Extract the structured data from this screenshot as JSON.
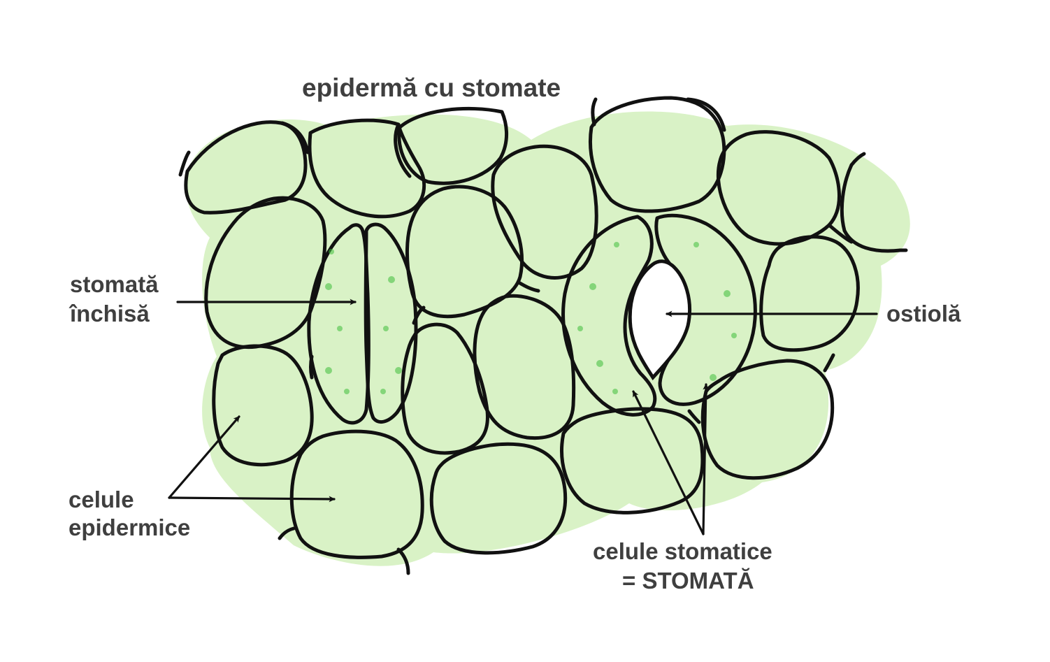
{
  "title": "epidermă cu stomate",
  "labels": {
    "closed_stoma_line1": "stomată",
    "closed_stoma_line2": "închisă",
    "ostiole": "ostiolă",
    "epidermal_cells_line1": "celule",
    "epidermal_cells_line2": "epidermice",
    "guard_cells_line1": "celule stomatice",
    "guard_cells_line2": "= STOMATĂ"
  },
  "colors": {
    "epidermal_fill": "#cdeeb5",
    "epidermal_fill_light": "#ddf4cc",
    "guard_fill": "#74d86a",
    "guard_fill_dark": "#4ec94a",
    "outline": "#111111",
    "label_text": "#3f3f3f"
  }
}
